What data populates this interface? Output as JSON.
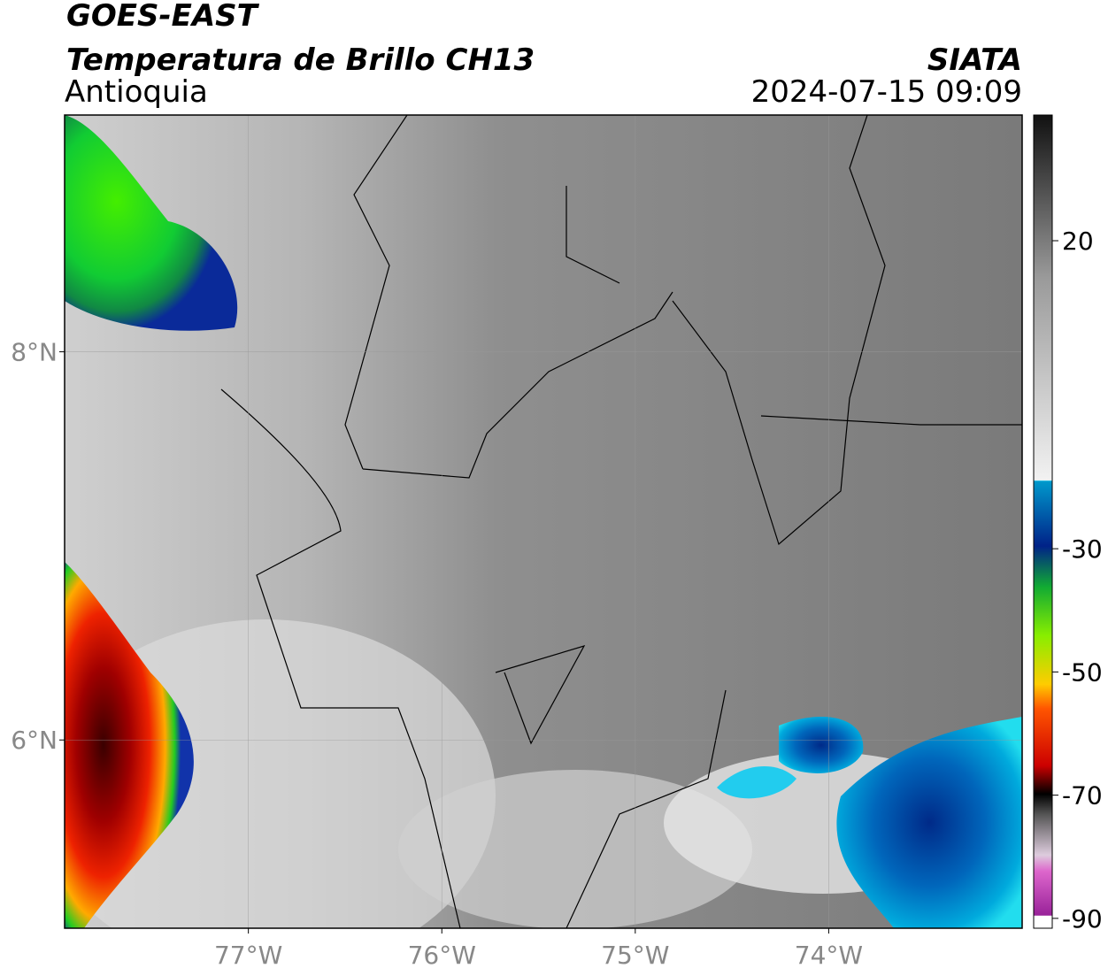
{
  "header": {
    "title": "GOES-EAST",
    "subtitle": "Temperatura de Brillo CH13",
    "region": "Antioquia",
    "source": "SIATA",
    "datetime": "2024-07-15 09:09"
  },
  "map": {
    "xlim": [
      -77.95,
      -73.0
    ],
    "ylim": [
      5.03,
      9.22
    ],
    "xticks": [
      {
        "value": -77,
        "label": "77°W"
      },
      {
        "value": -76,
        "label": "76°W"
      },
      {
        "value": -75,
        "label": "75°W"
      },
      {
        "value": -74,
        "label": "74°W"
      }
    ],
    "yticks": [
      {
        "value": 8,
        "label": "8°N"
      },
      {
        "value": 6,
        "label": "6°N"
      }
    ]
  },
  "colorbar": {
    "lim": [
      -91.6,
      40.4
    ],
    "ticks": [
      20,
      -30,
      -50,
      -70,
      -90
    ]
  }
}
